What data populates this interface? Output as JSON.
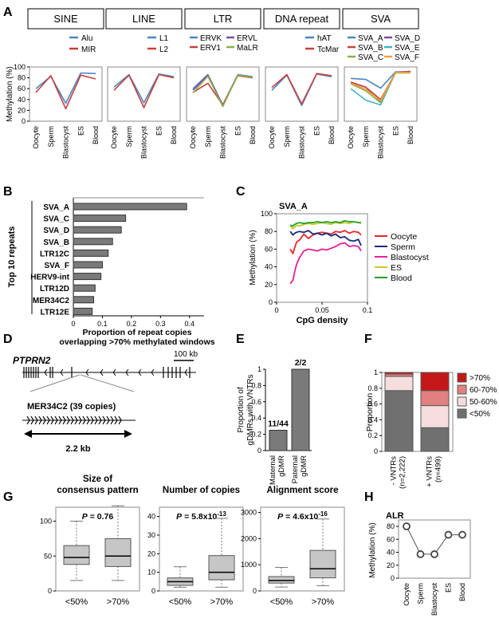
{
  "panel_labels": [
    "A",
    "B",
    "C",
    "D",
    "E",
    "F",
    "G",
    "H"
  ],
  "panelA": {
    "ylabel": "Methylation (%)",
    "yticks": [
      "0",
      "20",
      "40",
      "60",
      "80",
      "100"
    ],
    "xticks": [
      "Oocyte",
      "Sperm",
      "Blastocyst",
      "ES",
      "Blood"
    ],
    "colors": {
      "blue": "#4a86c5",
      "red": "#c8403c",
      "purple": "#7a4fa0",
      "green": "#8db04a",
      "teal": "#3fb5c8",
      "orange": "#f0a040"
    }
  },
  "chart_data": [
    {
      "type": "line",
      "panel": "A",
      "title": "SINE",
      "categories": [
        "Oocyte",
        "Sperm",
        "Blastocyst",
        "ES",
        "Blood"
      ],
      "ylim": [
        0,
        100
      ],
      "series": [
        {
          "name": "Alu",
          "color": "#4a86c5",
          "values": [
            60,
            83,
            33,
            89,
            88
          ]
        },
        {
          "name": "MIR",
          "color": "#c8403c",
          "values": [
            53,
            84,
            23,
            85,
            78
          ]
        }
      ]
    },
    {
      "type": "line",
      "panel": "A",
      "title": "LINE",
      "categories": [
        "Oocyte",
        "Sperm",
        "Blastocyst",
        "ES",
        "Blood"
      ],
      "ylim": [
        0,
        100
      ],
      "series": [
        {
          "name": "L1",
          "color": "#4a86c5",
          "values": [
            63,
            86,
            34,
            87,
            82
          ]
        },
        {
          "name": "L2",
          "color": "#c8403c",
          "values": [
            57,
            85,
            25,
            86,
            80
          ]
        }
      ]
    },
    {
      "type": "line",
      "panel": "A",
      "title": "LTR",
      "categories": [
        "Oocyte",
        "Sperm",
        "Blastocyst",
        "ES",
        "Blood"
      ],
      "ylim": [
        0,
        100
      ],
      "series": [
        {
          "name": "ERVK",
          "color": "#4a86c5",
          "values": [
            60,
            86,
            30,
            86,
            82
          ]
        },
        {
          "name": "ERVL",
          "color": "#7a4fa0",
          "values": [
            57,
            85,
            29,
            85,
            81
          ]
        },
        {
          "name": "ERV1",
          "color": "#c8403c",
          "values": [
            53,
            70,
            30,
            84,
            80
          ]
        },
        {
          "name": "MaLR",
          "color": "#8db04a",
          "values": [
            52,
            83,
            27,
            85,
            81
          ]
        }
      ]
    },
    {
      "type": "line",
      "panel": "A",
      "title": "DNA repeat",
      "categories": [
        "Oocyte",
        "Sperm",
        "Blastocyst",
        "ES",
        "Blood"
      ],
      "ylim": [
        0,
        100
      ],
      "series": [
        {
          "name": "hAT",
          "color": "#4a86c5",
          "values": [
            57,
            85,
            29,
            87,
            82
          ]
        },
        {
          "name": "TcMar",
          "color": "#c8403c",
          "values": [
            62,
            86,
            32,
            88,
            84
          ]
        }
      ]
    },
    {
      "type": "line",
      "panel": "A",
      "title": "SVA",
      "categories": [
        "Oocyte",
        "Sperm",
        "Blastocyst",
        "ES",
        "Blood"
      ],
      "ylim": [
        0,
        100
      ],
      "series": [
        {
          "name": "SVA_A",
          "color": "#4a86c5",
          "values": [
            79,
            77,
            61,
            91,
            91
          ]
        },
        {
          "name": "SVA_D",
          "color": "#7a4fa0",
          "values": [
            72,
            63,
            36,
            90,
            90
          ]
        },
        {
          "name": "SVA_B",
          "color": "#c8403c",
          "values": [
            72,
            63,
            40,
            90,
            92
          ]
        },
        {
          "name": "SVA_E",
          "color": "#3fb5c8",
          "values": [
            60,
            39,
            30,
            90,
            90
          ]
        },
        {
          "name": "SVA_C",
          "color": "#8db04a",
          "values": [
            69,
            56,
            34,
            89,
            89
          ]
        },
        {
          "name": "SVA_F",
          "color": "#f0a040",
          "values": [
            70,
            59,
            38,
            90,
            90
          ]
        }
      ]
    },
    {
      "type": "bar",
      "panel": "B",
      "orientation": "horizontal",
      "ylabel": "Top 10 repeats",
      "xlabel": "Proportion of repeat copies overlapping >70% methylated windows",
      "xlabel_lines": [
        "Proportion of repeat copies",
        "overlapping >70% methylated windows"
      ],
      "categories": [
        "SVA_A",
        "SVA_C",
        "SVA_D",
        "SVA_B",
        "LTR12C",
        "SVA_F",
        "HERV9-int",
        "LTR12D",
        "MER34C2",
        "LTR12E"
      ],
      "values": [
        0.39,
        0.18,
        0.165,
        0.135,
        0.12,
        0.1,
        0.095,
        0.075,
        0.07,
        0.065
      ],
      "xlim": [
        0,
        0.45
      ],
      "xticks": [
        "0",
        "0.1",
        "0.2",
        "0.3",
        "0.4"
      ],
      "color": "#7a7a7a"
    },
    {
      "type": "line",
      "panel": "C",
      "title": "SVA_A",
      "xlabel": "CpG density",
      "ylabel": "Methylation (%)",
      "xlim": [
        0,
        0.1
      ],
      "ylim": [
        0,
        100
      ],
      "xticks": [
        "0",
        "0.05",
        "0.1"
      ],
      "yticks": [
        "0",
        "20",
        "40",
        "60",
        "80",
        "100"
      ],
      "x": [
        0.015,
        0.018,
        0.02,
        0.022,
        0.025,
        0.03,
        0.035,
        0.04,
        0.045,
        0.05,
        0.055,
        0.06,
        0.065,
        0.07,
        0.075,
        0.08,
        0.085,
        0.09,
        0.093
      ],
      "series": [
        {
          "name": "Oocyte",
          "color": "#e8242a",
          "values": [
            60,
            55,
            62,
            68,
            70,
            77,
            72,
            76,
            78,
            79,
            78,
            77,
            80,
            79,
            81,
            78,
            80,
            79,
            76
          ]
        },
        {
          "name": "Sperm",
          "color": "#1a2a80",
          "values": [
            80,
            76,
            78,
            79,
            80,
            79,
            81,
            77,
            78,
            76,
            78,
            75,
            77,
            73,
            74,
            70,
            69,
            71,
            64
          ]
        },
        {
          "name": "Blastocyst",
          "color": "#e8209a",
          "values": [
            21,
            25,
            35,
            43,
            50,
            58,
            60,
            59,
            58,
            60,
            59,
            61,
            63,
            66,
            67,
            63,
            64,
            63,
            58
          ]
        },
        {
          "name": "ES",
          "color": "#c8c82a",
          "values": [
            86,
            83,
            85,
            87,
            86,
            88,
            89,
            88,
            89,
            90,
            89,
            88,
            90,
            89,
            90,
            89,
            91,
            90,
            89
          ]
        },
        {
          "name": "Blood",
          "color": "#22a02a",
          "values": [
            87,
            86,
            88,
            89,
            90,
            89,
            90,
            90,
            91,
            90,
            91,
            90,
            91,
            90,
            92,
            91,
            91,
            90,
            90
          ]
        }
      ]
    },
    {
      "type": "bar",
      "panel": "E",
      "ylabel": "Proportion of gDMRs with VNTRs",
      "ylabel_lines": [
        "Proportion of",
        "gDMRs with VNTRs"
      ],
      "categories": [
        "Maternal gDMR",
        "Paternal gDMR"
      ],
      "category_lines": [
        [
          "Maternal",
          "gDMR"
        ],
        [
          "Paternal",
          "gDMR"
        ]
      ],
      "values": [
        0.25,
        1.0
      ],
      "data_labels": [
        "11/44",
        "2/2"
      ],
      "ylim": [
        0,
        1
      ],
      "yticks": [
        "0",
        "0.2",
        "0.4",
        "0.6",
        "0.8",
        "1"
      ],
      "color": "#7a7a7a"
    },
    {
      "type": "bar",
      "panel": "F",
      "stacked": true,
      "ylabel": "Proportion",
      "categories": [
        "- VNTRs (n=2,222)",
        "+ VNTRs (n=499)"
      ],
      "category_lines": [
        [
          "- VNTRs",
          "(n=2,222)"
        ],
        [
          "+ VNTRs",
          "(n=499)"
        ]
      ],
      "ylim": [
        0,
        1
      ],
      "yticks": [
        "0",
        "0.2",
        "0.4",
        "0.6",
        "0.8",
        "1"
      ],
      "series": [
        {
          "name": "<50%",
          "color": "#707070",
          "values": [
            0.77,
            0.3
          ]
        },
        {
          "name": "50-60%",
          "color": "#f7dede",
          "values": [
            0.18,
            0.28
          ]
        },
        {
          "name": "60-70%",
          "color": "#e08080",
          "values": [
            0.03,
            0.19
          ]
        },
        {
          "name": ">70%",
          "color": "#c41818",
          "values": [
            0.02,
            0.23
          ]
        }
      ],
      "legend_order": [
        ">70%",
        "60-70%",
        "50-60%",
        "<50%"
      ]
    },
    {
      "type": "box",
      "panel": "G",
      "title": "Size of consensus pattern",
      "title_lines": [
        "Size of",
        "consensus pattern"
      ],
      "annotation": "P = 0.76",
      "categories": [
        "<50%",
        ">70%"
      ],
      "ylim": [
        0,
        120
      ],
      "yticks": [
        "0",
        "50",
        "100"
      ],
      "boxes": [
        {
          "min": 15,
          "q1": 38,
          "median": 48,
          "q3": 65,
          "max": 100
        },
        {
          "min": 15,
          "q1": 35,
          "median": 50,
          "q3": 75,
          "max": 122
        }
      ]
    },
    {
      "type": "box",
      "panel": "G",
      "title": "Number of copies",
      "title_lines": [
        "Number of copies"
      ],
      "annotation": "P = 5.8x10-13",
      "categories": [
        "<50%",
        ">70%"
      ],
      "ylim": [
        0,
        45
      ],
      "yticks": [
        "0",
        "10",
        "20",
        "30",
        "40"
      ],
      "boxes": [
        {
          "min": 2,
          "q1": 3,
          "median": 5,
          "q3": 7,
          "max": 13
        },
        {
          "min": 2,
          "q1": 6,
          "median": 10,
          "q3": 19,
          "max": 39
        }
      ]
    },
    {
      "type": "box",
      "panel": "G",
      "title": "Alignment score",
      "title_lines": [
        "Alignment score"
      ],
      "annotation": "P = 4.6x10-16",
      "categories": [
        "<50%",
        ">70%"
      ],
      "ylim": [
        0,
        3200
      ],
      "yticks": [
        "0",
        "1000",
        "2000",
        "3000"
      ],
      "boxes": [
        {
          "min": 150,
          "q1": 300,
          "median": 400,
          "q3": 550,
          "max": 900
        },
        {
          "min": 200,
          "q1": 500,
          "median": 850,
          "q3": 1550,
          "max": 2750
        }
      ]
    },
    {
      "type": "line",
      "panel": "H",
      "title": "ALR",
      "ylabel": "Methylation (%)",
      "categories": [
        "Oocyte",
        "Sperm",
        "Blastocyst",
        "ES",
        "Blood"
      ],
      "ylim": [
        0,
        80
      ],
      "yticks": [
        "0",
        "20",
        "40",
        "60",
        "80"
      ],
      "series": [
        {
          "values": [
            80,
            37,
            37,
            67,
            67
          ],
          "color": "#555555"
        }
      ]
    }
  ],
  "panelD": {
    "gene": "PTPRN2",
    "scale_label": "100 kb",
    "repeat_label": "MER34C2 (39 copies)",
    "length_label": "2.2 kb"
  },
  "panelG_annotations": [
    {
      "prefix": "P",
      "eq": " = ",
      "mant": "0.76",
      "sup": ""
    },
    {
      "prefix": "P",
      "eq": " = ",
      "mant": "5.8x10",
      "sup": "-13"
    },
    {
      "prefix": "P",
      "eq": " = ",
      "mant": "4.6x10",
      "sup": "-16"
    }
  ]
}
